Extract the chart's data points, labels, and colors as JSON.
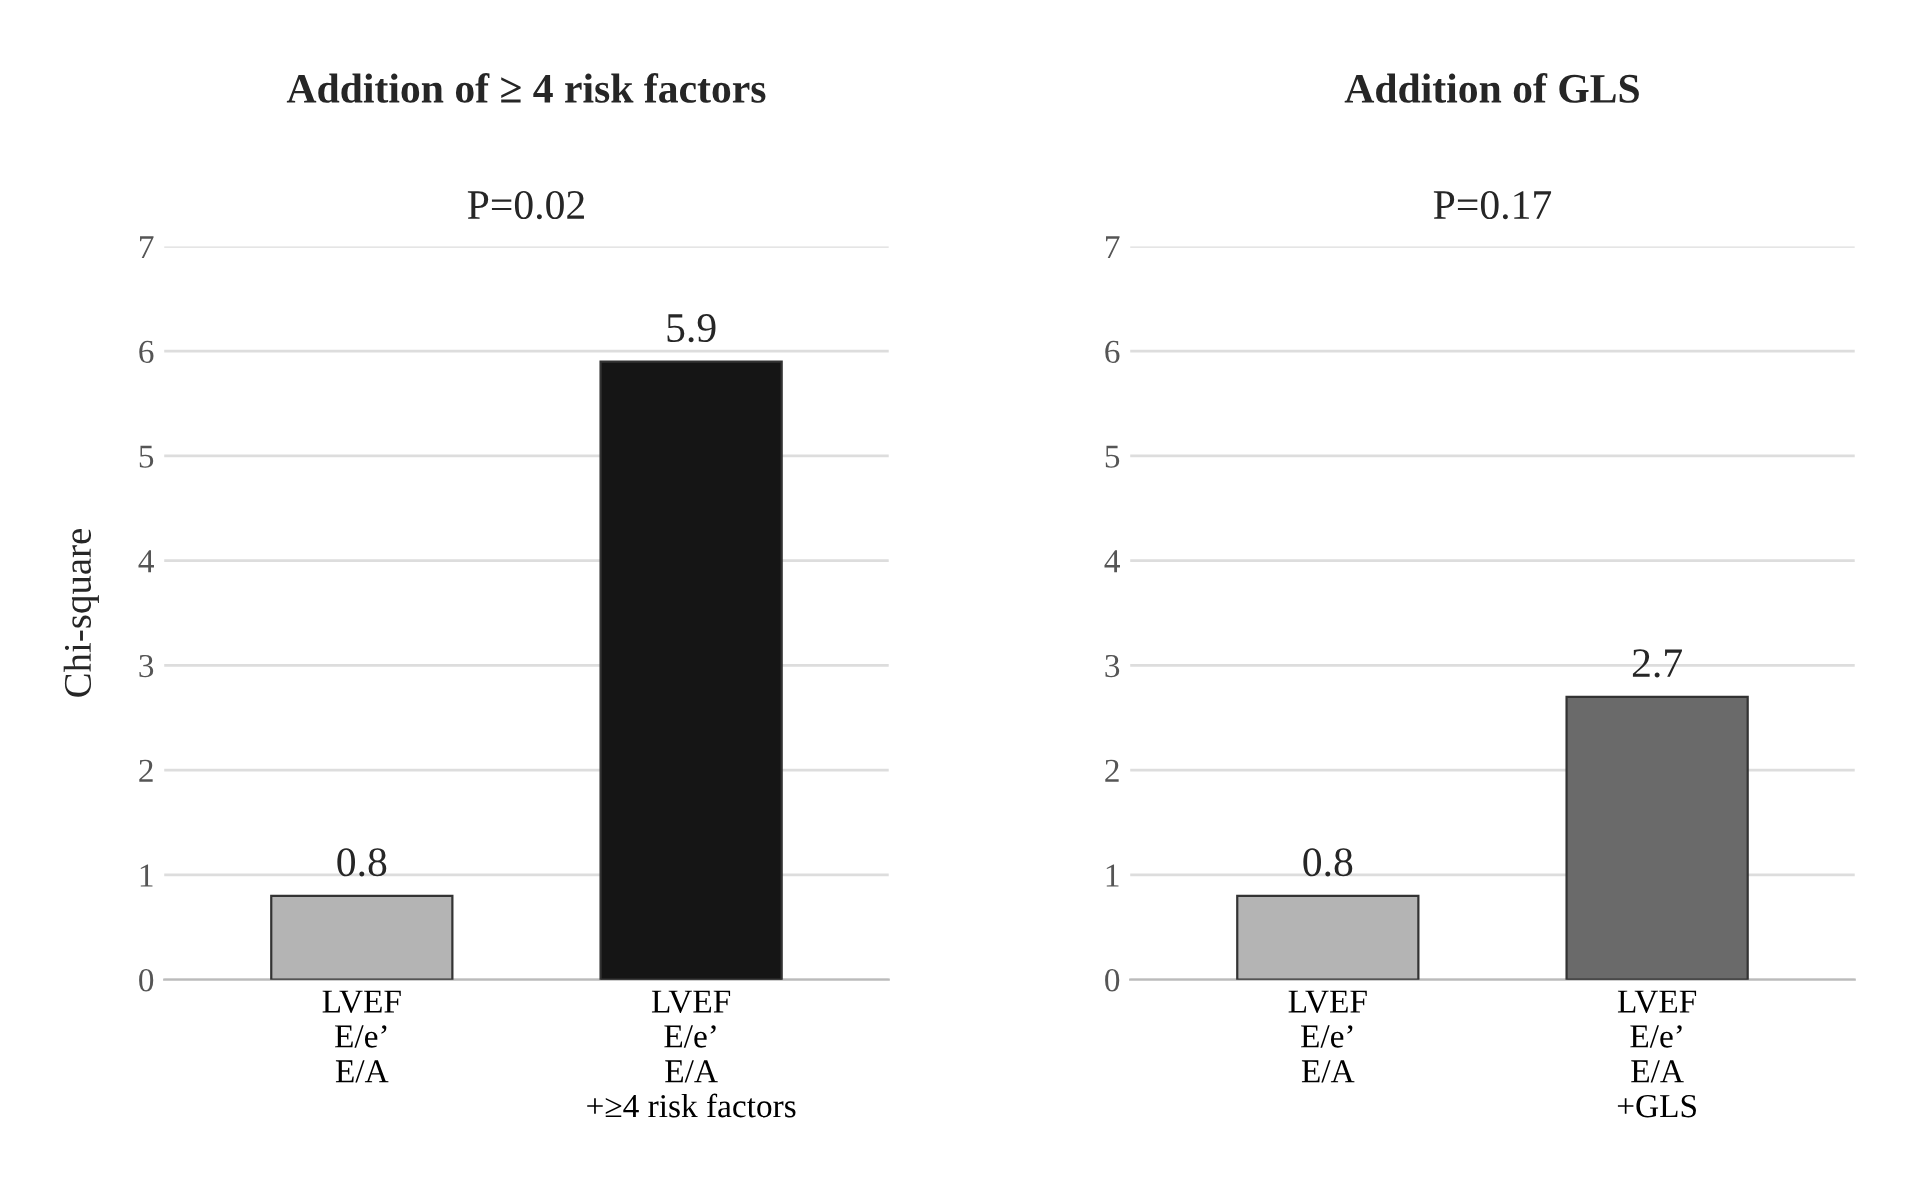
{
  "chart_data": [
    {
      "type": "bar",
      "title": "Addition of ≥ 4 risk factors",
      "subtitle": "P=0.02",
      "ylabel": "Chi-square",
      "categories": [
        "LVEF\nE/e’\nE/A",
        "LVEF\nE/e’\nE/A\n+≥4 risk factors"
      ],
      "values": [
        0.8,
        5.9
      ],
      "colors": [
        "#b4b4b4",
        "#151515"
      ],
      "ylim": [
        0,
        7
      ],
      "yticks": [
        0,
        1,
        2,
        3,
        4,
        5,
        6,
        7
      ],
      "grid": "y",
      "data_labels": true
    },
    {
      "type": "bar",
      "title": "Addition of GLS",
      "subtitle": "P=0.17",
      "categories": [
        "LVEF\nE/e’\nE/A",
        "LVEF\nE/e’\nE/A\n+GLS"
      ],
      "values": [
        0.8,
        2.7
      ],
      "colors": [
        "#b4b4b4",
        "#6a6a6a"
      ],
      "ylim": [
        0,
        7
      ],
      "yticks": [
        0,
        1,
        2,
        3,
        4,
        5,
        6,
        7
      ],
      "grid": "y",
      "data_labels": true
    }
  ]
}
